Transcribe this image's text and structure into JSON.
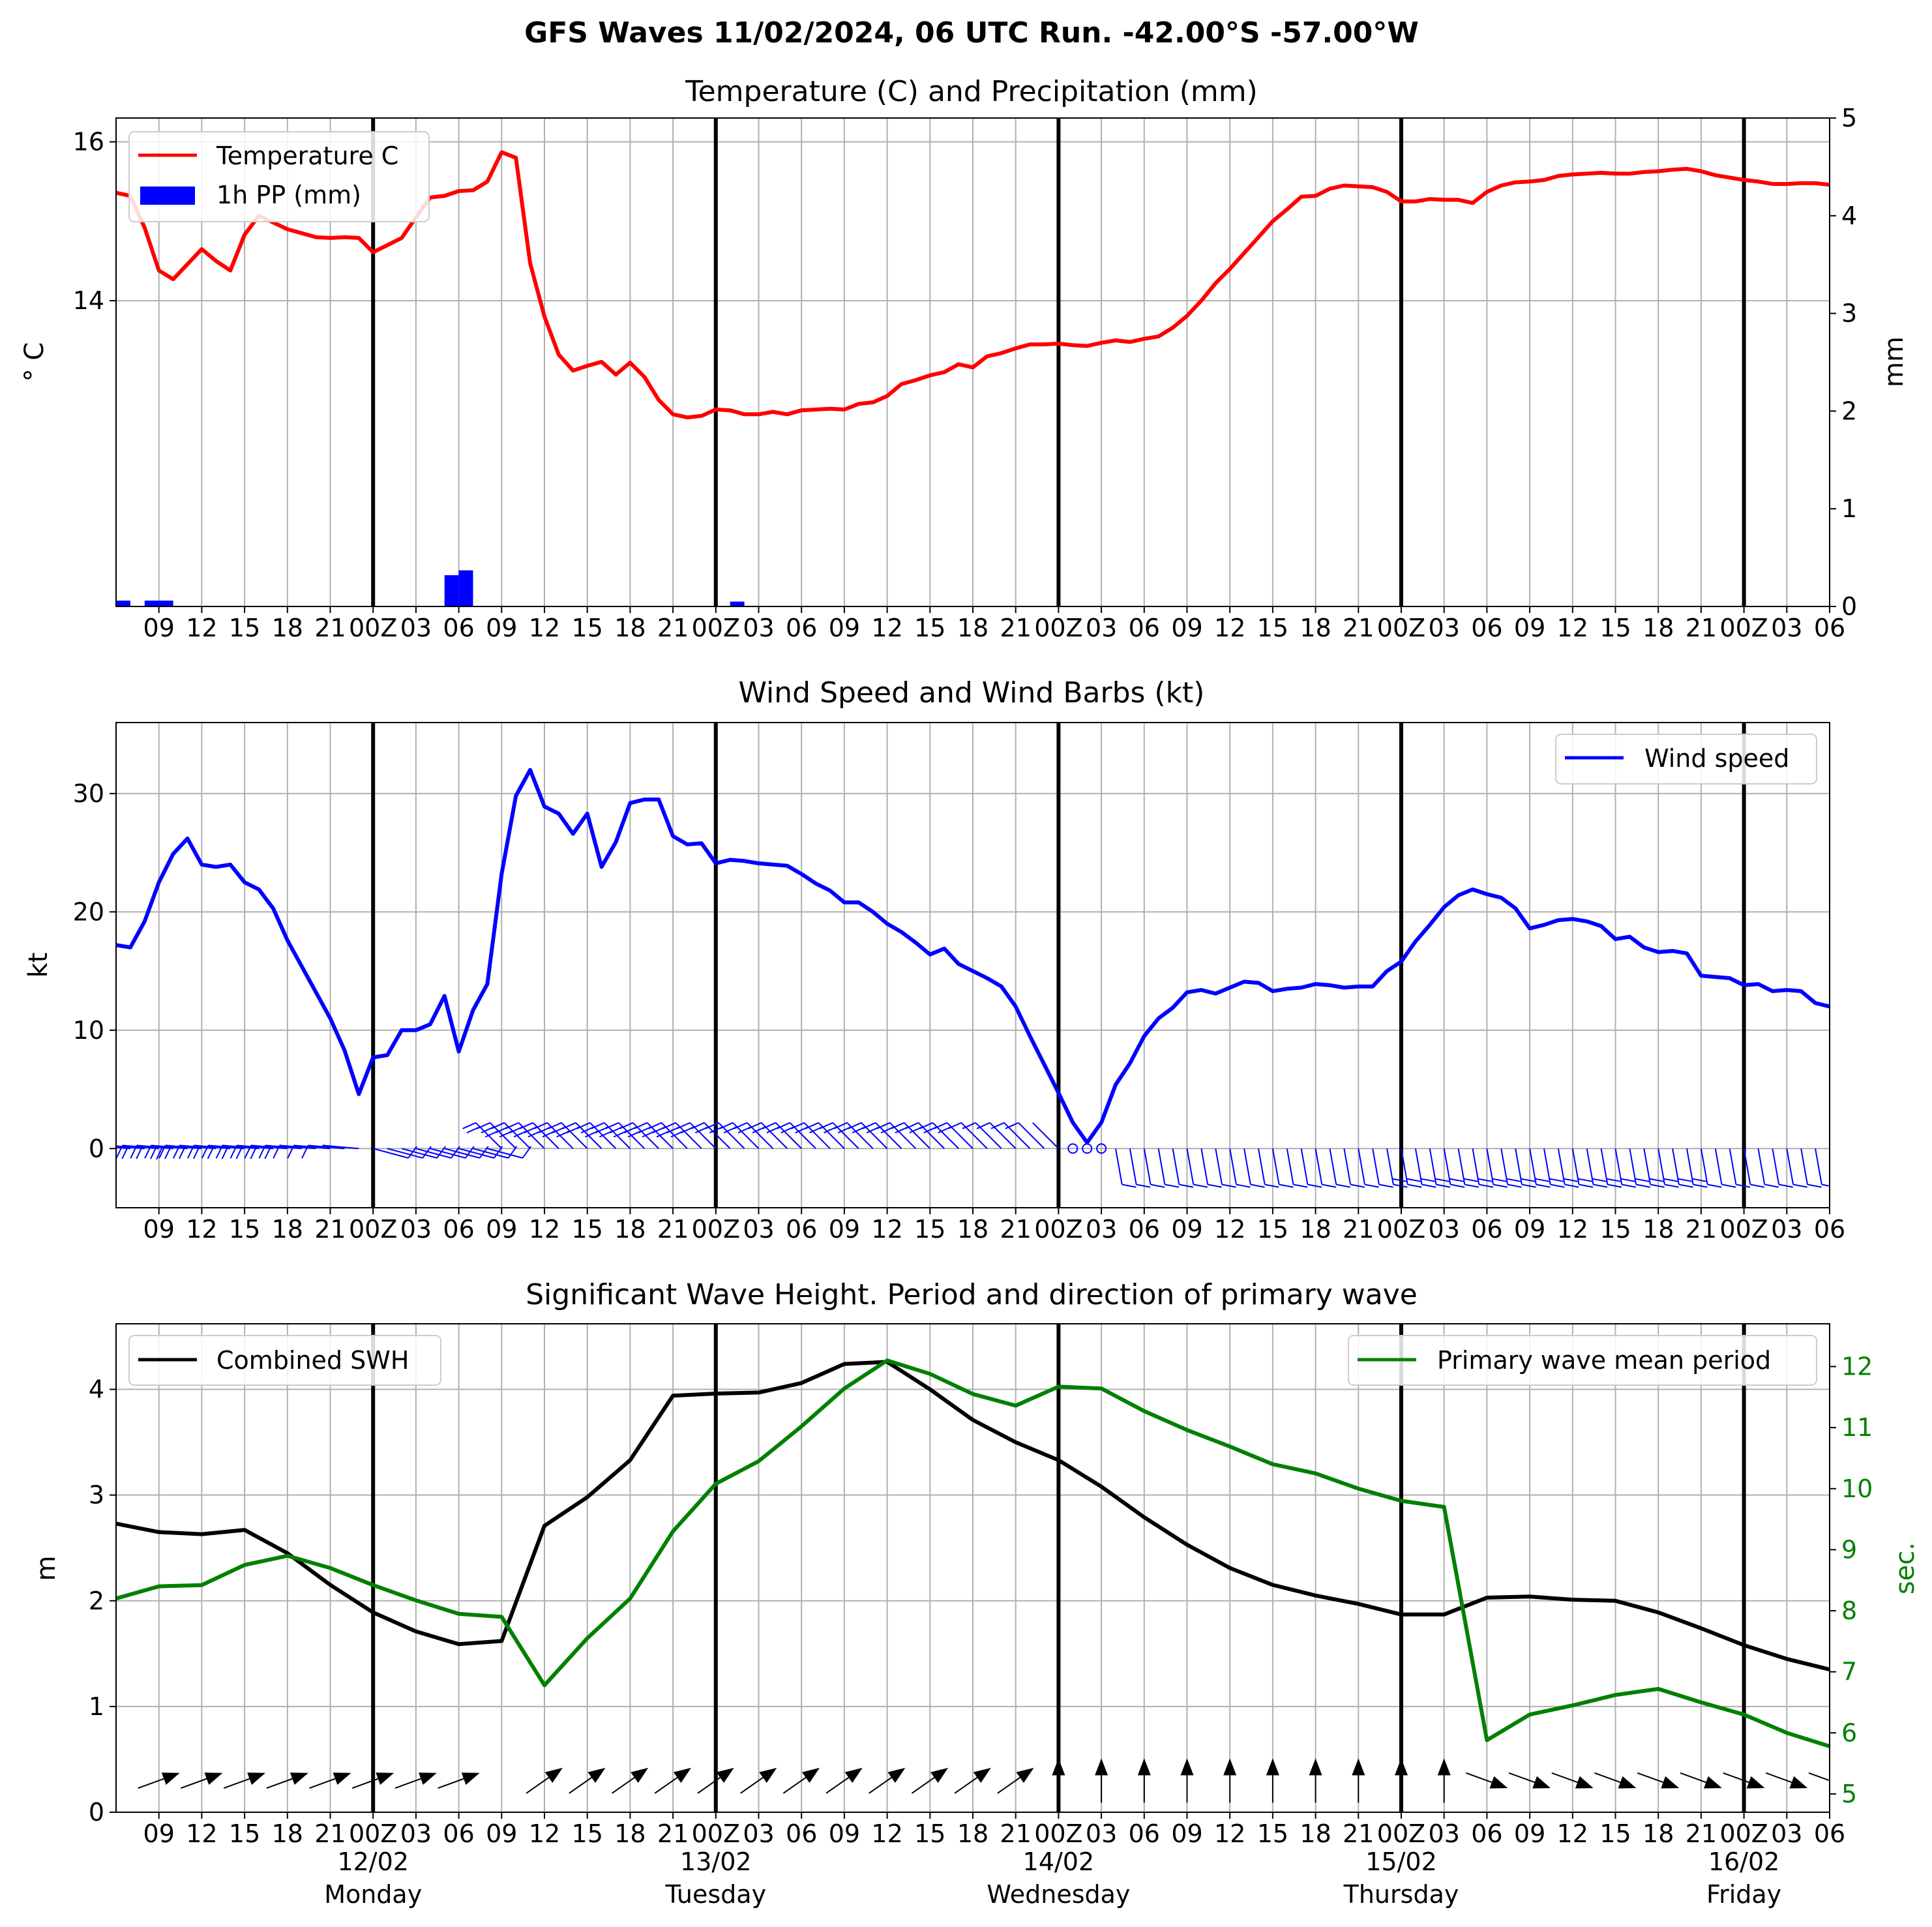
{
  "figure": {
    "suptitle": "GFS Waves 11/02/2024, 06 UTC Run. -42.00°S -57.00°W"
  },
  "time_axis": {
    "start": "2024-02-11 06:00",
    "end": "2024-02-16 06:00",
    "xlim_hours": [
      0,
      120
    ],
    "hour_labels": [
      "09",
      "12",
      "15",
      "18",
      "21",
      "00Z",
      "03",
      "06",
      "09",
      "12",
      "15",
      "18",
      "21",
      "00Z",
      "03",
      "06",
      "09",
      "12",
      "15",
      "18",
      "21",
      "00Z",
      "03",
      "06",
      "09",
      "12",
      "15",
      "18",
      "21",
      "00Z",
      "03",
      "06",
      "09",
      "12",
      "15",
      "18",
      "21",
      "00Z",
      "03",
      "06"
    ],
    "hour_label_positions": [
      3,
      6,
      9,
      12,
      15,
      18,
      21,
      24,
      27,
      30,
      33,
      36,
      39,
      42,
      45,
      48,
      51,
      54,
      57,
      60,
      63,
      66,
      69,
      72,
      75,
      78,
      81,
      84,
      87,
      90,
      93,
      96,
      99,
      102,
      105,
      108,
      111,
      114,
      117,
      120
    ],
    "day_labels": [
      {
        "date": "12/02",
        "weekday": "Monday",
        "hour": 18
      },
      {
        "date": "13/02",
        "weekday": "Tuesday",
        "hour": 42
      },
      {
        "date": "14/02",
        "weekday": "Wednesday",
        "hour": 66
      },
      {
        "date": "15/02",
        "weekday": "Thursday",
        "hour": 90
      },
      {
        "date": "16/02",
        "weekday": "Friday",
        "hour": 114
      }
    ]
  },
  "chart_data": [
    {
      "type": "line",
      "title": "Temperature (C) and Precipitation (mm)",
      "ylabel": "° C",
      "ylabel_right": "mm",
      "ylim": [
        10.15,
        16.3
      ],
      "ylim_right": [
        0,
        5
      ],
      "yticks": [
        14,
        16
      ],
      "yticks_right": [
        0,
        1,
        2,
        3,
        4,
        5
      ],
      "legend": [
        "Temperature C",
        "1h PP (mm)"
      ],
      "legend_position": "upper-left",
      "series": [
        {
          "name": "Temperature C",
          "color": "#ff0000",
          "x": [
            0,
            1,
            2,
            3,
            4,
            6,
            7,
            8,
            9,
            10,
            12,
            14,
            15,
            16,
            17,
            18,
            19,
            20,
            21,
            22,
            23,
            24,
            25,
            26,
            27,
            28,
            29,
            30,
            31,
            32,
            33,
            34,
            35,
            36,
            37,
            38,
            39,
            40,
            41,
            42,
            43,
            44,
            45,
            46,
            47,
            48,
            49,
            50,
            51,
            52,
            53,
            54,
            55,
            56,
            57,
            58,
            59,
            60,
            61,
            62,
            63,
            64,
            65,
            66,
            67,
            68,
            69,
            70,
            71,
            72,
            73,
            74,
            75,
            76,
            77,
            78,
            79,
            80,
            81,
            82,
            83,
            84,
            85,
            86,
            87,
            88,
            89,
            90,
            91,
            92,
            93,
            94,
            95,
            96,
            97,
            98,
            99,
            100,
            101,
            102,
            103,
            104,
            105,
            106,
            107,
            108,
            109,
            110,
            111,
            112,
            113,
            114,
            115,
            116,
            117,
            118,
            119,
            120
          ],
          "values": [
            15.36,
            15.32,
            14.92,
            14.38,
            14.27,
            14.65,
            14.5,
            14.38,
            14.83,
            15.07,
            14.9,
            14.8,
            14.79,
            14.8,
            14.79,
            14.61,
            14.7,
            14.79,
            15.05,
            15.3,
            15.32,
            15.38,
            15.39,
            15.5,
            15.87,
            15.8,
            14.47,
            13.8,
            13.32,
            13.12,
            13.18,
            13.23,
            13.07,
            13.22,
            13.04,
            12.75,
            12.57,
            12.53,
            12.55,
            12.63,
            12.62,
            12.57,
            12.57,
            12.6,
            12.57,
            12.62,
            12.63,
            12.64,
            12.63,
            12.7,
            12.72,
            12.8,
            12.95,
            13.0,
            13.06,
            13.1,
            13.2,
            13.16,
            13.3,
            13.34,
            13.4,
            13.45,
            13.45,
            13.46,
            13.44,
            13.43,
            13.47,
            13.5,
            13.48,
            13.52,
            13.55,
            13.66,
            13.81,
            14.0,
            14.22,
            14.4,
            14.6,
            14.8,
            15.0,
            15.15,
            15.31,
            15.32,
            15.41,
            15.45,
            15.44,
            15.43,
            15.37,
            15.25,
            15.25,
            15.28,
            15.27,
            15.27,
            15.23,
            15.37,
            15.45,
            15.49,
            15.5,
            15.52,
            15.57,
            15.59,
            15.6,
            15.61,
            15.6,
            15.6,
            15.62,
            15.63,
            15.65,
            15.66,
            15.63,
            15.58,
            15.55,
            15.52,
            15.5,
            15.47,
            15.47,
            15.48,
            15.48,
            15.46
          ]
        },
        {
          "name": "1h PP (mm)",
          "type": "bar",
          "axis": "right",
          "color": "#0000ff",
          "x": [
            0.5,
            2.5,
            3.5,
            23.5,
            24.5,
            43.5
          ],
          "values": [
            0.06,
            0.06,
            0.06,
            0.32,
            0.37,
            0.05
          ]
        }
      ]
    },
    {
      "type": "line",
      "title": "Wind Speed and Wind Barbs (kt)",
      "ylabel": "kt",
      "ylim": [
        -5,
        36
      ],
      "yticks": [
        0,
        10,
        20,
        30
      ],
      "legend": [
        "Wind speed"
      ],
      "legend_position": "upper-right",
      "series": [
        {
          "name": "Wind speed",
          "color": "#0000ff",
          "x": [
            0,
            1,
            2,
            3,
            4,
            5,
            6,
            7,
            8,
            9,
            10,
            11,
            12,
            13,
            14,
            15,
            16,
            17,
            18,
            19,
            20,
            21,
            22,
            23,
            24,
            25,
            26,
            27,
            28,
            29,
            30,
            31,
            32,
            33,
            34,
            35,
            36,
            37,
            38,
            39,
            40,
            41,
            42,
            43,
            44,
            45,
            46,
            47,
            48,
            49,
            50,
            51,
            52,
            53,
            54,
            55,
            56,
            57,
            58,
            59,
            60,
            61,
            62,
            63,
            64,
            65,
            66,
            67,
            68,
            69,
            70,
            71,
            72,
            73,
            74,
            75,
            76,
            77,
            78,
            79,
            80,
            81,
            82,
            83,
            84,
            85,
            86,
            87,
            88,
            89,
            90,
            91,
            92,
            93,
            94,
            95,
            96,
            97,
            98,
            99,
            100,
            101,
            102,
            103,
            104,
            105,
            106,
            107,
            108,
            109,
            110,
            111,
            112,
            113,
            114,
            115,
            116,
            117,
            118,
            119,
            120
          ],
          "values": [
            17.2,
            17.0,
            19.2,
            22.5,
            24.9,
            26.2,
            24.0,
            23.8,
            24.0,
            22.5,
            21.9,
            20.3,
            17.6,
            15.4,
            13.2,
            11.0,
            8.3,
            4.6,
            7.7,
            7.9,
            10.0,
            10.0,
            10.5,
            12.9,
            8.2,
            11.7,
            13.9,
            23.2,
            29.8,
            32.0,
            28.9,
            28.3,
            26.6,
            28.3,
            23.8,
            25.9,
            29.2,
            29.5,
            29.5,
            26.4,
            25.7,
            25.8,
            24.1,
            24.4,
            24.3,
            24.1,
            24.0,
            23.9,
            23.2,
            22.4,
            21.8,
            20.8,
            20.8,
            20.0,
            19.0,
            18.3,
            17.4,
            16.4,
            16.9,
            15.6,
            15.0,
            14.4,
            13.7,
            12.0,
            9.5,
            7.1,
            4.7,
            2.2,
            0.5,
            2.2,
            5.4,
            7.2,
            9.5,
            11.0,
            11.9,
            13.2,
            13.4,
            13.1,
            13.6,
            14.1,
            14.0,
            13.3,
            13.5,
            13.6,
            13.9,
            13.8,
            13.6,
            13.7,
            13.7,
            15.0,
            15.8,
            17.5,
            18.9,
            20.4,
            21.4,
            21.9,
            21.5,
            21.2,
            20.3,
            18.6,
            18.9,
            19.3,
            19.4,
            19.2,
            18.8,
            17.7,
            17.9,
            17.0,
            16.6,
            16.7,
            16.5,
            14.6,
            14.5,
            14.4,
            13.8,
            13.9,
            13.3,
            13.4,
            13.3,
            12.3,
            12.0
          ]
        }
      ]
    },
    {
      "type": "line",
      "title": "Significant Wave Height. Period and direction of primary wave",
      "ylabel": "m",
      "ylabel_right": "sec.",
      "ylim": [
        0,
        4.62
      ],
      "ylim_right": [
        4.7,
        12.7
      ],
      "yticks": [
        0,
        1,
        2,
        3,
        4
      ],
      "yticks_right": [
        5,
        6,
        7,
        8,
        9,
        10,
        11,
        12
      ],
      "legend": [
        "Combined SWH",
        "Primary wave mean period"
      ],
      "legend_position": "upper-left / upper-right",
      "series": [
        {
          "name": "Combined SWH",
          "color": "#000000",
          "x": [
            0,
            3,
            6,
            9,
            12,
            15,
            18,
            21,
            24,
            27,
            30,
            33,
            36,
            39,
            42,
            45,
            48,
            51,
            54,
            57,
            60,
            63,
            66,
            69,
            72,
            75,
            78,
            81,
            84,
            87,
            90,
            93,
            96,
            99,
            102,
            105,
            108,
            111,
            114,
            117,
            120
          ],
          "values": [
            2.73,
            2.65,
            2.63,
            2.67,
            2.45,
            2.15,
            1.89,
            1.71,
            1.59,
            1.62,
            2.71,
            2.98,
            3.33,
            3.94,
            3.96,
            3.97,
            4.06,
            4.24,
            4.26,
            4.0,
            3.71,
            3.5,
            3.33,
            3.08,
            2.79,
            2.53,
            2.31,
            2.15,
            2.05,
            1.97,
            1.87,
            1.87,
            2.03,
            2.04,
            2.01,
            2.0,
            1.89,
            1.74,
            1.58,
            1.45,
            1.35
          ]
        },
        {
          "name": "Primary wave mean period",
          "color": "#008000",
          "axis": "right",
          "x": [
            0,
            3,
            6,
            9,
            12,
            15,
            18,
            21,
            24,
            27,
            30,
            33,
            36,
            39,
            42,
            45,
            48,
            51,
            54,
            57,
            60,
            63,
            66,
            69,
            72,
            75,
            78,
            81,
            84,
            87,
            90,
            93,
            96,
            99,
            102,
            105,
            108,
            111,
            114,
            117,
            120
          ],
          "values": [
            8.2,
            8.4,
            8.42,
            8.75,
            8.9,
            8.7,
            8.42,
            8.17,
            7.95,
            7.9,
            6.78,
            7.55,
            8.2,
            9.3,
            10.08,
            10.45,
            11.02,
            11.64,
            12.1,
            11.88,
            11.55,
            11.36,
            11.67,
            11.64,
            11.27,
            10.96,
            10.69,
            10.4,
            10.25,
            10.0,
            9.8,
            9.7,
            5.88,
            6.3,
            6.45,
            6.62,
            6.72,
            6.5,
            6.3,
            6.0,
            5.78
          ]
        }
      ]
    }
  ]
}
